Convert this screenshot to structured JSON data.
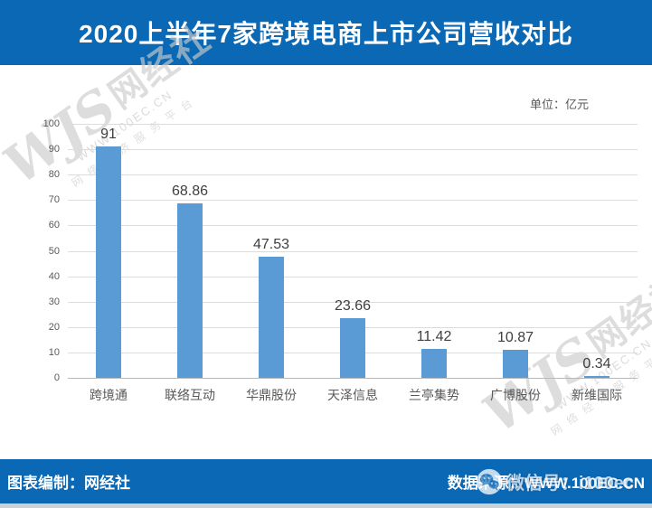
{
  "header": {
    "title": "2020上半年7家跨境电商上市公司营收对比"
  },
  "chart": {
    "unit_label": "单位：亿元"
  },
  "chart_data": {
    "type": "bar",
    "title": "2020上半年7家跨境电商上市公司营收对比",
    "categories": [
      "跨境通",
      "联络互动",
      "华鼎股份",
      "天泽信息",
      "兰亭集势",
      "广博股份",
      "新维国际"
    ],
    "values": [
      91,
      68.86,
      47.53,
      23.66,
      11.42,
      10.87,
      0.34
    ],
    "value_labels": [
      "91",
      "68.86",
      "47.53",
      "23.66",
      "11.42",
      "10.87",
      "0.34"
    ],
    "unit": "亿元",
    "xlabel": "",
    "ylabel": "",
    "ylim": [
      0,
      100
    ],
    "ytick_step": 10,
    "grid": true,
    "legend": false,
    "bar_color": "#5b9bd5"
  },
  "watermark": {
    "logo_script": "WJS",
    "brand": "网经社",
    "url": "WWW.100EC.CN",
    "tagline": "网络经济服务平台"
  },
  "footer": {
    "left": "图表编制：网经社",
    "right": "数据来源：WWW.100EC.CN",
    "wechat_overlay": "微信号：i100ec"
  },
  "colors": {
    "header_blue": "#0a68b4",
    "bar_blue": "#5b9bd5",
    "gridline": "#dcdcdc",
    "axis_text": "#595959",
    "data_label": "#3f3f3f",
    "watermark_gray": "#c9c9c9",
    "bottom_strip": "#ccd1d6"
  }
}
